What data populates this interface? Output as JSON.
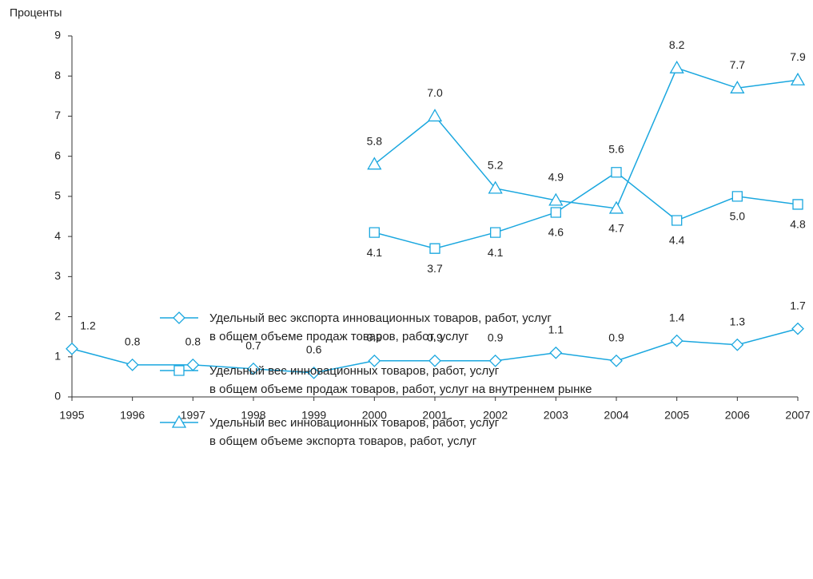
{
  "chart_data": {
    "type": "line",
    "y_label": "Проценты",
    "categories": [
      "1995",
      "1996",
      "1997",
      "1998",
      "1999",
      "2000",
      "2001",
      "2002",
      "2003",
      "2004",
      "2005",
      "2006",
      "2007"
    ],
    "ylim": [
      0,
      9
    ],
    "yticks": [
      0,
      1,
      2,
      3,
      4,
      5,
      6,
      7,
      8,
      9
    ],
    "series": [
      {
        "name": "Удельный вес экспорта инновационных товаров, работ, услуг\nв общем объеме продаж товаров, работ, услуг",
        "color": "#1aa7df",
        "marker": "diamond",
        "values": [
          1.2,
          0.8,
          0.8,
          0.7,
          0.6,
          0.9,
          0.9,
          0.9,
          1.1,
          0.9,
          1.4,
          1.3,
          1.7
        ],
        "value_labels": [
          "1.2",
          "0.8",
          "0.8",
          "0.7",
          "0.6",
          "0.9",
          "0.9",
          "0.9",
          "1.1",
          "0.9",
          "1.4",
          "1.3",
          "1.7"
        ]
      },
      {
        "name": "Удельный вес инновационных товаров, работ, услуг\nв общем объеме продаж товаров, работ, услуг на внутреннем рынке",
        "color": "#1aa7df",
        "marker": "square",
        "values": [
          null,
          null,
          null,
          null,
          null,
          4.1,
          3.7,
          4.1,
          4.6,
          5.6,
          4.4,
          5.0,
          4.8
        ],
        "value_labels": [
          null,
          null,
          null,
          null,
          null,
          "4.1",
          "3.7",
          "4.1",
          "4.6",
          "5.6",
          "4.4",
          "5.0",
          "4.8"
        ]
      },
      {
        "name": "Удельный вес инновационных товаров, работ, услуг\nв общем объеме экспорта товаров, работ, услуг",
        "color": "#1aa7df",
        "marker": "triangle",
        "values": [
          null,
          null,
          null,
          null,
          null,
          5.8,
          7.0,
          5.2,
          4.9,
          4.7,
          8.2,
          7.7,
          7.9
        ],
        "value_labels": [
          null,
          null,
          null,
          null,
          null,
          "5.8",
          "7.0",
          "5.2",
          "4.9",
          "4.7",
          "8.2",
          "7.7",
          "7.9"
        ]
      }
    ]
  }
}
